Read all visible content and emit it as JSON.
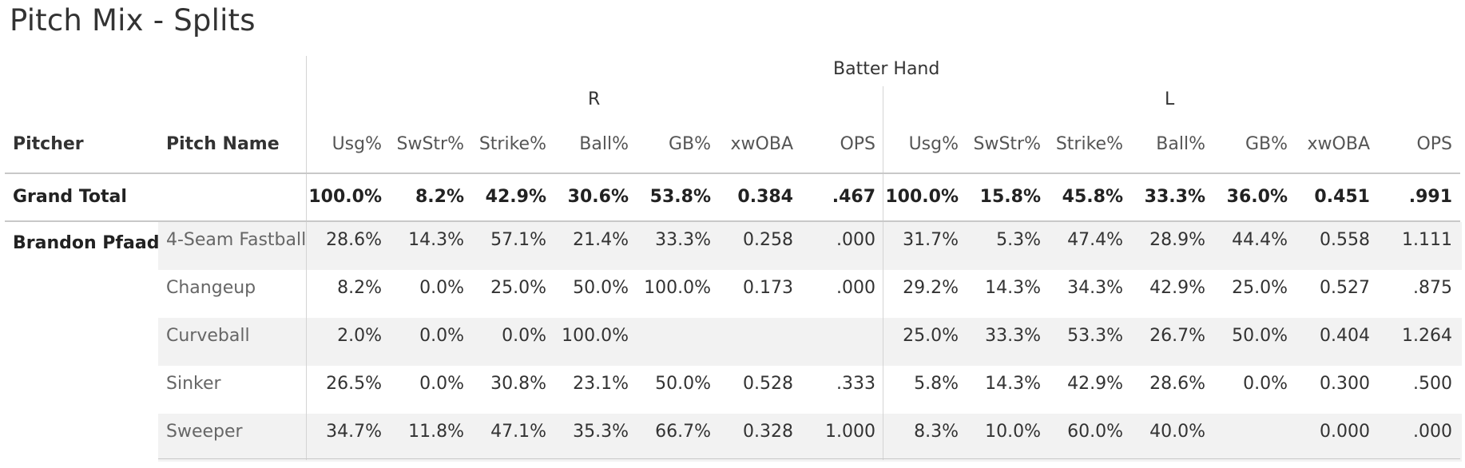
{
  "title": "Pitch Mix - Splits",
  "header": {
    "group_label": "Batter Hand",
    "hand_r": "R",
    "hand_l": "L",
    "pitcher_col": "Pitcher",
    "pitch_name_col": "Pitch Name",
    "metric_cols": [
      "Usg%",
      "SwStr%",
      "Strike%",
      "Ball%",
      "GB%",
      "xwOBA",
      "OPS"
    ]
  },
  "grand_total": {
    "label": "Grand Total",
    "r": [
      "100.0%",
      "8.2%",
      "42.9%",
      "30.6%",
      "53.8%",
      "0.384",
      ".467"
    ],
    "l": [
      "100.0%",
      "15.8%",
      "45.8%",
      "33.3%",
      "36.0%",
      "0.451",
      ".991"
    ]
  },
  "pitcher": "Brandon Pfaadt",
  "rows": [
    {
      "pitch": "4-Seam Fastball",
      "r": [
        "28.6%",
        "14.3%",
        "57.1%",
        "21.4%",
        "33.3%",
        "0.258",
        ".000"
      ],
      "l": [
        "31.7%",
        "5.3%",
        "47.4%",
        "28.9%",
        "44.4%",
        "0.558",
        "1.111"
      ]
    },
    {
      "pitch": "Changeup",
      "r": [
        "8.2%",
        "0.0%",
        "25.0%",
        "50.0%",
        "100.0%",
        "0.173",
        ".000"
      ],
      "l": [
        "29.2%",
        "14.3%",
        "34.3%",
        "42.9%",
        "25.0%",
        "0.527",
        ".875"
      ]
    },
    {
      "pitch": "Curveball",
      "r": [
        "2.0%",
        "0.0%",
        "0.0%",
        "100.0%",
        "",
        "",
        ""
      ],
      "l": [
        "25.0%",
        "33.3%",
        "53.3%",
        "26.7%",
        "50.0%",
        "0.404",
        "1.264"
      ]
    },
    {
      "pitch": "Sinker",
      "r": [
        "26.5%",
        "0.0%",
        "30.8%",
        "23.1%",
        "50.0%",
        "0.528",
        ".333"
      ],
      "l": [
        "5.8%",
        "14.3%",
        "42.9%",
        "28.6%",
        "0.0%",
        "0.300",
        ".500"
      ]
    },
    {
      "pitch": "Sweeper",
      "r": [
        "34.7%",
        "11.8%",
        "47.1%",
        "35.3%",
        "66.7%",
        "0.328",
        "1.000"
      ],
      "l": [
        "8.3%",
        "10.0%",
        "60.0%",
        "40.0%",
        "",
        "0.000",
        ".000"
      ]
    }
  ]
}
